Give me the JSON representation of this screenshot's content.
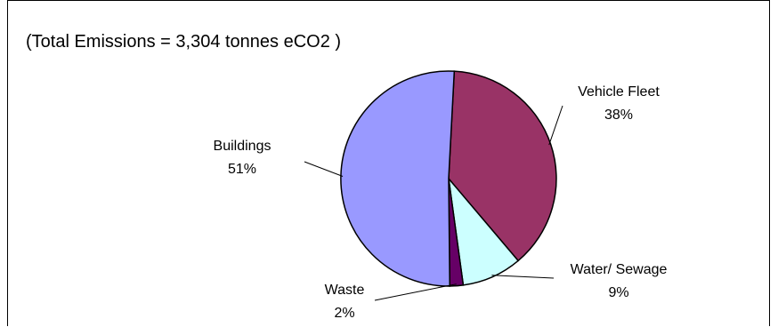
{
  "chart_data": {
    "type": "pie",
    "title": "(Total Emissions = 3,304 tonnes eCO2 )",
    "slices": [
      {
        "name": "Vehicle Fleet",
        "value": 38,
        "label": "38%",
        "color": "#993366"
      },
      {
        "name": "Water/ Sewage",
        "value": 9,
        "label": "9%",
        "color": "#CCFFFF"
      },
      {
        "name": "Waste",
        "value": 2,
        "label": "2%",
        "color": "#660066"
      },
      {
        "name": "Buildings",
        "value": 51,
        "label": "51%",
        "color": "#9999FF"
      }
    ],
    "start_angle_deg": 3,
    "direction": "clockwise",
    "legend": "none"
  }
}
